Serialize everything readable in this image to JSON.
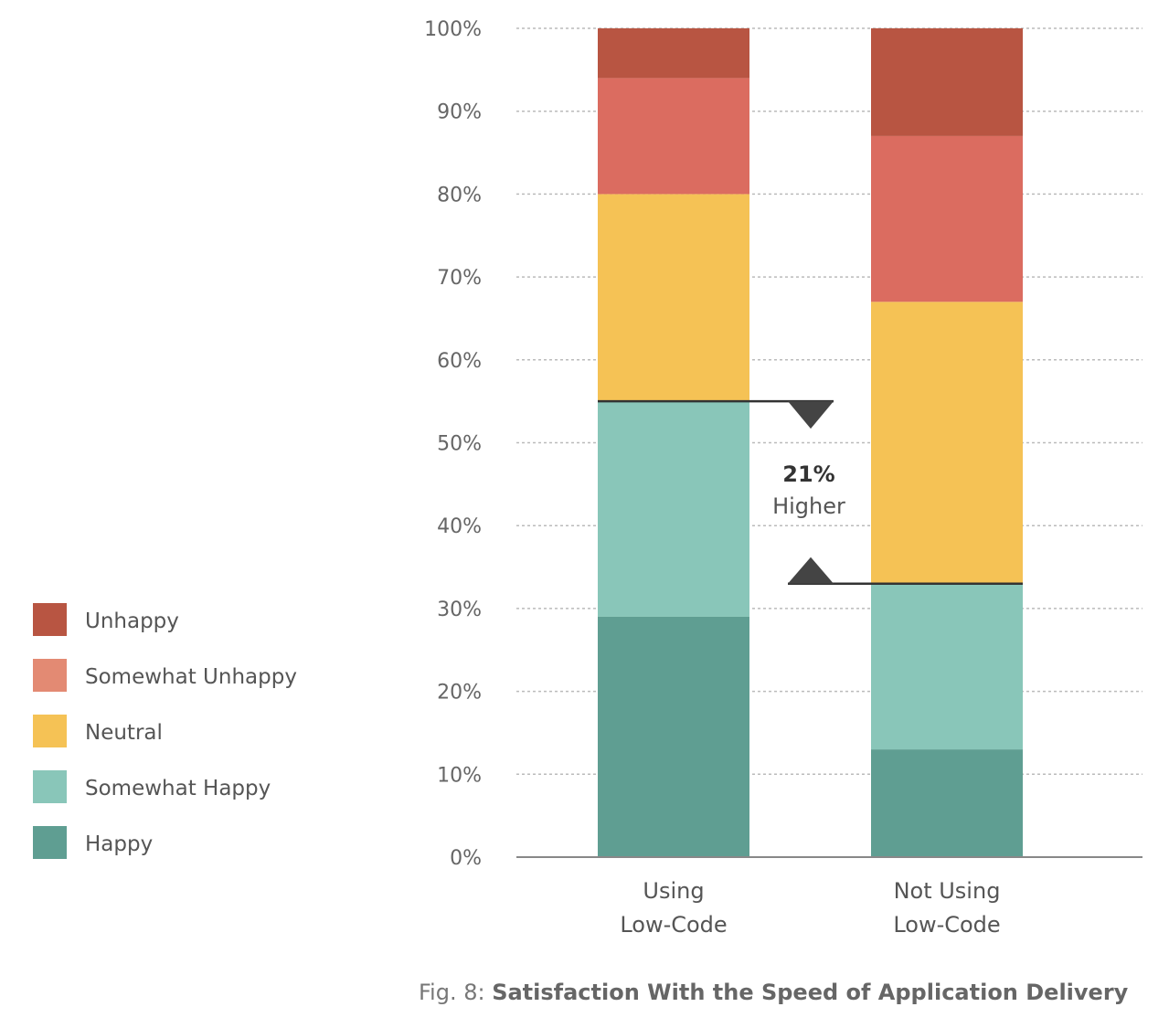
{
  "chart_data": {
    "type": "bar",
    "stacked": true,
    "categories": [
      [
        "Using",
        "Low-Code"
      ],
      [
        "Not Using",
        "Low-Code"
      ]
    ],
    "series": [
      {
        "name": "Happy",
        "color": "#5f9e92",
        "values": [
          29,
          13
        ]
      },
      {
        "name": "Somewhat Happy",
        "color": "#89c6b9",
        "values": [
          26,
          20
        ]
      },
      {
        "name": "Neutral",
        "color": "#f5c255",
        "values": [
          25,
          34
        ]
      },
      {
        "name": "Somewhat Unhappy",
        "color": "#db6c60",
        "values": [
          14,
          20
        ]
      },
      {
        "name": "Unhappy",
        "color": "#b85542",
        "values": [
          6,
          13
        ]
      }
    ],
    "legend_order": [
      "Unhappy",
      "Somewhat Unhappy",
      "Neutral",
      "Somewhat Happy",
      "Happy"
    ],
    "legend_swatch_colors": {
      "Unhappy": "#b85542",
      "Somewhat Unhappy": "#e38a73",
      "Neutral": "#f5c255",
      "Somewhat Happy": "#89c6b9",
      "Happy": "#5f9e92"
    },
    "legend_placement": "left",
    "yticks": [
      "0%",
      "10%",
      "20%",
      "30%",
      "40%",
      "50%",
      "60%",
      "70%",
      "80%",
      "90%",
      "100%"
    ],
    "ylim": [
      0,
      100
    ],
    "grid": true,
    "annotation": {
      "value": "21%",
      "text": "Higher",
      "from_level": 55,
      "to_level": 33
    }
  },
  "caption": {
    "prefix": "Fig. 8: ",
    "title": "Satisfaction With the Speed of Application Delivery"
  }
}
